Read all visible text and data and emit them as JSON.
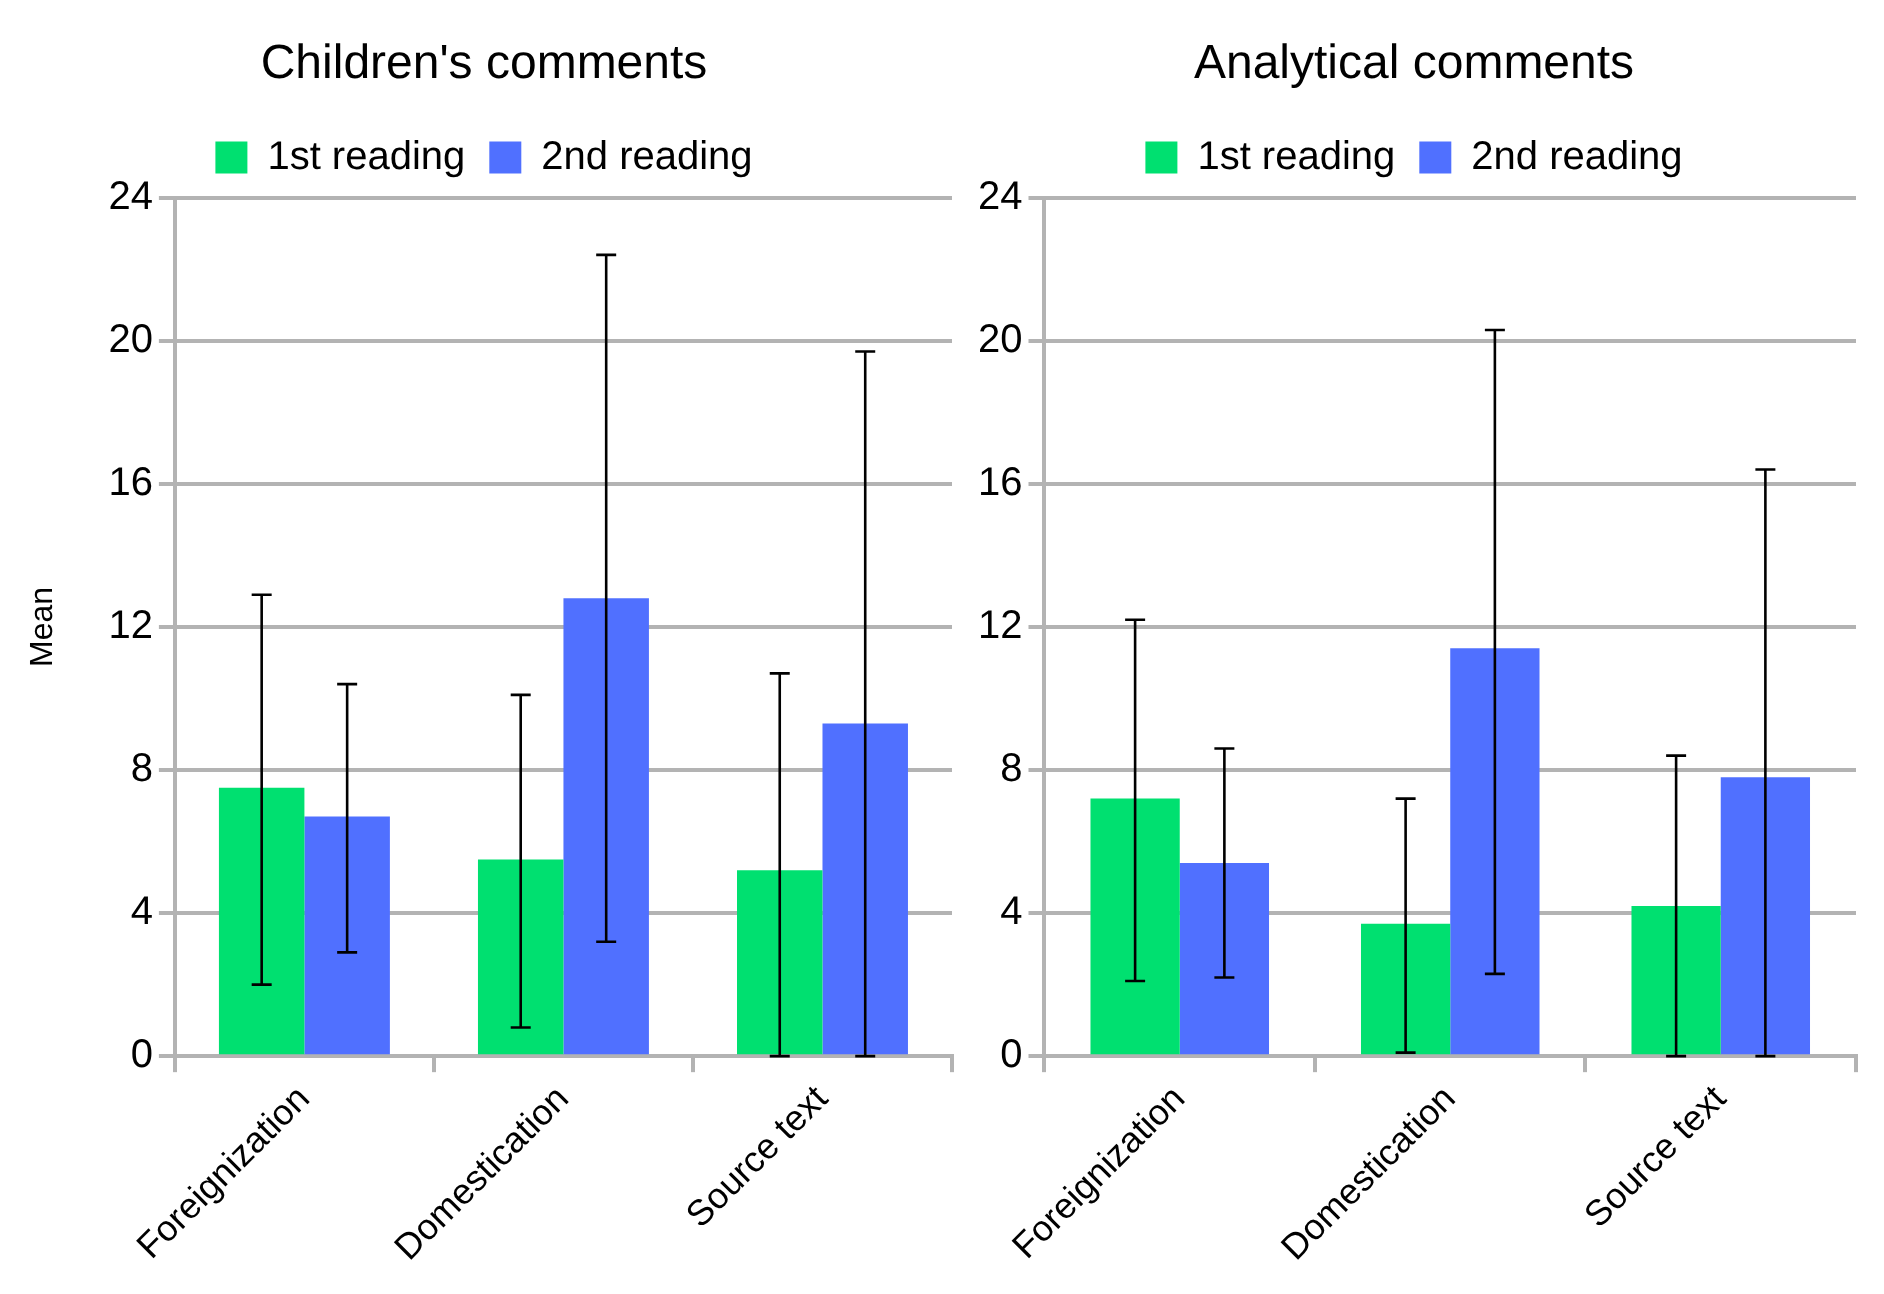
{
  "chart_data": [
    {
      "type": "bar",
      "title": "Children's comments",
      "ylabel": "Mean",
      "categories": [
        "Foreignization",
        "Domestication",
        "Source text"
      ],
      "series": [
        {
          "name": "1st reading",
          "color": "#00e070",
          "values": [
            7.5,
            5.5,
            5.2
          ],
          "errors": [
            [
              2.0,
              12.9
            ],
            [
              0.8,
              10.1
            ],
            [
              0,
              10.7
            ]
          ]
        },
        {
          "name": "2nd reading",
          "color": "#5070ff",
          "values": [
            6.7,
            12.8,
            9.3
          ],
          "errors": [
            [
              2.9,
              10.4
            ],
            [
              3.2,
              22.4
            ],
            [
              0,
              19.7
            ]
          ]
        }
      ],
      "ylim": [
        0,
        24
      ],
      "yticks": [
        0,
        4,
        8,
        12,
        16,
        20,
        24
      ],
      "grid": "y",
      "legend": "top"
    },
    {
      "type": "bar",
      "title": "Analytical comments",
      "categories": [
        "Foreignization",
        "Domestication",
        "Source text"
      ],
      "series": [
        {
          "name": "1st reading",
          "color": "#00e070",
          "values": [
            7.2,
            3.7,
            4.2
          ],
          "errors": [
            [
              2.1,
              12.2
            ],
            [
              0.1,
              7.2
            ],
            [
              0,
              8.4
            ]
          ]
        },
        {
          "name": "2nd reading",
          "color": "#5070ff",
          "values": [
            5.4,
            11.4,
            7.8
          ],
          "errors": [
            [
              2.2,
              8.6
            ],
            [
              2.3,
              20.3
            ],
            [
              0,
              16.4
            ]
          ]
        }
      ],
      "ylim": [
        0,
        24
      ],
      "yticks": [
        0,
        4,
        8,
        12,
        16,
        20,
        24
      ],
      "grid": "y",
      "legend": "top"
    }
  ]
}
